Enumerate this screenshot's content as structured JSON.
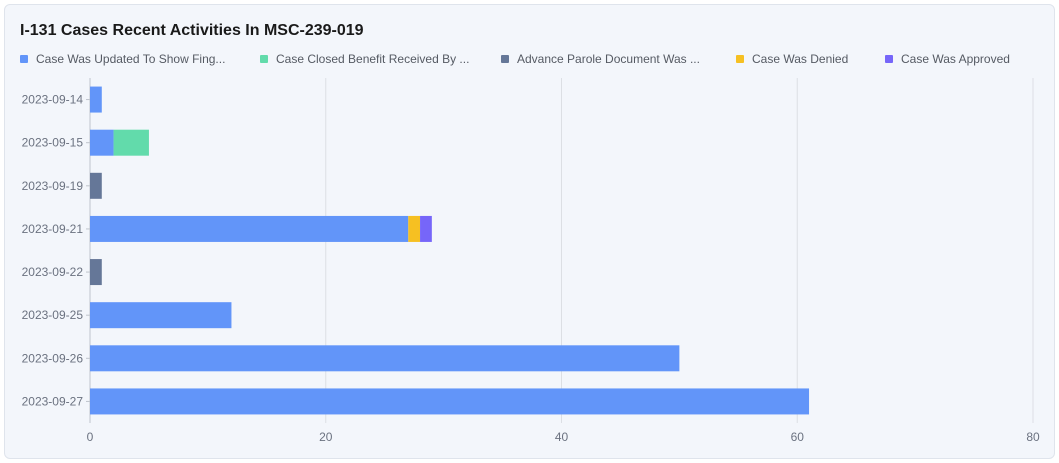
{
  "chart_data": {
    "type": "bar",
    "orientation": "horizontal",
    "stacked": true,
    "title": "I-131 Cases Recent Activities In MSC-239-019",
    "categories": [
      "2023-09-14",
      "2023-09-15",
      "2023-09-19",
      "2023-09-21",
      "2023-09-22",
      "2023-09-25",
      "2023-09-26",
      "2023-09-27"
    ],
    "xlim": [
      0,
      80
    ],
    "xticks": [
      "0",
      "20",
      "40",
      "60",
      "80"
    ],
    "legend_position": "top",
    "grid": "vertical",
    "series": [
      {
        "name": "Case Was Updated To Show Fing...",
        "color": "#6295f9",
        "values": [
          1,
          2,
          0,
          27,
          0,
          12,
          50,
          61
        ]
      },
      {
        "name": "Case Closed Benefit Received By ...",
        "color": "#62dbab",
        "values": [
          0,
          3,
          0,
          0,
          0,
          0,
          0,
          0
        ]
      },
      {
        "name": "Advance Parole Document Was ...",
        "color": "#657798",
        "values": [
          0,
          0,
          1,
          0,
          1,
          0,
          0,
          0
        ]
      },
      {
        "name": "Case Was Denied",
        "color": "#f6c022",
        "values": [
          0,
          0,
          0,
          1,
          0,
          0,
          0,
          0
        ]
      },
      {
        "name": "Case Was Approved",
        "color": "#7666f9",
        "values": [
          0,
          0,
          0,
          1,
          0,
          0,
          0,
          0
        ]
      }
    ]
  }
}
